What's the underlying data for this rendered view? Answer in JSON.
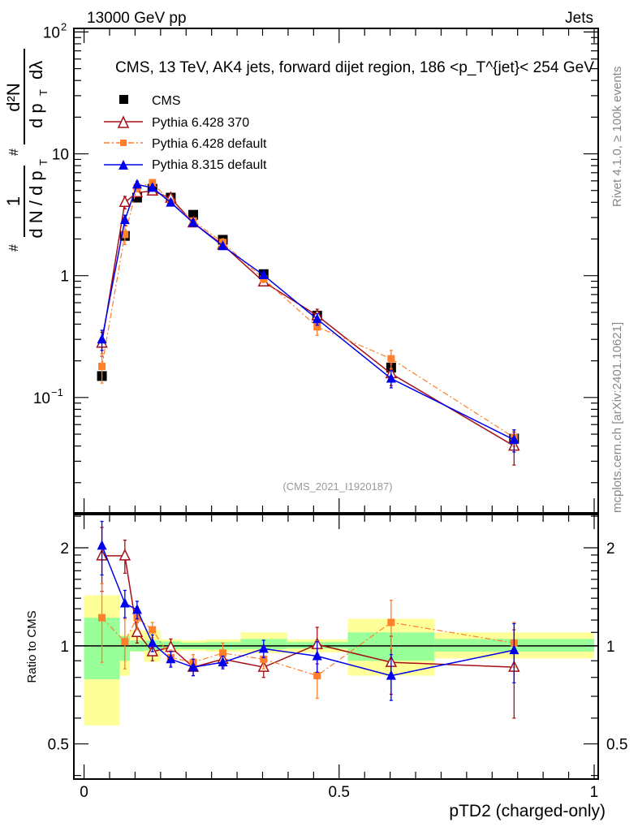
{
  "header": {
    "left": "13000 GeV pp",
    "right": "Jets"
  },
  "side_labels": {
    "rivet": "Rivet 4.1.0, ≥ 100k events",
    "mcplots": "mcplots.cern.ch [arXiv:2401.10621]"
  },
  "colors": {
    "cms": "#000000",
    "p6_370": "#a50f15",
    "p6_default": "#ff7f2a",
    "p8_default": "#0000ee",
    "band_yellow": "#ffff99",
    "band_green": "#99ff99"
  },
  "chart_data": [
    {
      "type": "line",
      "panel": "main",
      "title": "CMS, 13 TeV, AK4 jets, forward dijet region, 186 <p_T^{jet}< 254 GeV",
      "title_parts": {
        "pre": "CMS, 13 TeV, AK4 jets, forward dijet region, 186 <p",
        "sup": "{jet}",
        "sub": "T",
        "post": "}< 254 GeV"
      },
      "ylabel_parts": {
        "num1": "1",
        "den1": "d N / d p",
        "num2": "d²N",
        "den2": "d p",
        "sub": "T",
        "den2b": "dλ",
        "hash": "#"
      },
      "yscale": "log",
      "ylim": [
        0.0113,
        107
      ],
      "xlim": [
        -0.02,
        1.008
      ],
      "yticks": [
        {
          "v": 0.1,
          "label": "10",
          "exp": "−1"
        },
        {
          "v": 1,
          "label": "1",
          "exp": ""
        },
        {
          "v": 10,
          "label": "10",
          "exp": ""
        },
        {
          "v": 100,
          "label": "10",
          "exp": "2"
        }
      ],
      "watermark": "(CMS_2021_I1920187)",
      "legend_position": "top-left",
      "x": [
        0.035,
        0.08,
        0.104,
        0.134,
        0.17,
        0.214,
        0.272,
        0.352,
        0.457,
        0.602,
        0.843
      ],
      "series": [
        {
          "name": "CMS",
          "key": "cms",
          "marker": "square",
          "values": [
            0.15,
            2.12,
            4.37,
            5.17,
            4.37,
            3.16,
            1.97,
            1.03,
            0.47,
            0.176,
            0.046
          ]
        },
        {
          "name": "Pythia 6.428 370",
          "key": "p6_370",
          "marker": "open-triangle",
          "values": [
            0.28,
            4.0,
            4.8,
            4.96,
            4.33,
            2.72,
            1.79,
            0.89,
            0.47,
            0.157,
            0.04
          ]
        },
        {
          "name": "Pythia 6.428 default",
          "key": "p6_default",
          "marker": "small-square",
          "values": [
            0.18,
            2.18,
            5.3,
            5.8,
            4.0,
            2.81,
            1.87,
            0.94,
            0.38,
            0.208,
            0.047
          ]
        },
        {
          "name": "Pythia 8.315 default",
          "key": "p8_default",
          "marker": "triangle",
          "values": [
            0.3,
            2.86,
            5.6,
            5.27,
            3.98,
            2.72,
            1.75,
            1.01,
            0.44,
            0.143,
            0.045
          ]
        }
      ]
    },
    {
      "type": "line",
      "panel": "ratio",
      "ylabel": "Ratio to CMS",
      "xlabel": "pTD2 (charged-only)",
      "yscale": "log",
      "ylim": [
        0.39,
        2.53
      ],
      "xlim": [
        -0.02,
        1.008
      ],
      "yticks": [
        {
          "v": 0.5,
          "label": "0.5"
        },
        {
          "v": 1,
          "label": "1"
        },
        {
          "v": 2,
          "label": "2"
        }
      ],
      "xticks": [
        {
          "v": 0,
          "label": "0"
        },
        {
          "v": 0.5,
          "label": "0.5"
        },
        {
          "v": 1,
          "label": "1"
        }
      ],
      "bin_edges": [
        0,
        0.07,
        0.09,
        0.118,
        0.15,
        0.19,
        0.238,
        0.307,
        0.398,
        0.517,
        0.687,
        1.0
      ],
      "band_outer": [
        [
          0.57,
          1.43
        ],
        [
          0.81,
          1.08
        ],
        [
          0.96,
          1.117
        ],
        [
          0.893,
          1.117
        ],
        [
          0.962,
          1.047
        ],
        [
          0.966,
          1.039
        ],
        [
          0.959,
          1.047
        ],
        [
          0.95,
          1.1
        ],
        [
          0.955,
          1.047
        ],
        [
          0.81,
          1.21
        ],
        [
          0.915,
          1.1
        ]
      ],
      "band_inner": [
        [
          0.79,
          1.22
        ],
        [
          0.9,
          1.07
        ],
        [
          0.962,
          1.039
        ],
        [
          0.968,
          1.039
        ],
        [
          0.977,
          1.031
        ],
        [
          0.977,
          1.023
        ],
        [
          0.973,
          1.027
        ],
        [
          0.977,
          1.05
        ],
        [
          0.981,
          1.027
        ],
        [
          0.9,
          1.1
        ],
        [
          0.96,
          1.05
        ]
      ],
      "x": [
        0.035,
        0.08,
        0.104,
        0.134,
        0.17,
        0.214,
        0.272,
        0.352,
        0.457,
        0.602,
        0.843
      ],
      "series": [
        {
          "name": "Pythia 6.428 370",
          "key": "p6_370",
          "marker": "open-triangle",
          "values": [
            1.89,
            1.89,
            1.1,
            0.96,
            0.99,
            0.86,
            0.91,
            0.86,
            1.01,
            0.89,
            0.86
          ],
          "errors": [
            0.42,
            0.22,
            0.08,
            0.06,
            0.06,
            0.05,
            0.05,
            0.06,
            0.13,
            0.18,
            0.26
          ]
        },
        {
          "name": "Pythia 6.428 default",
          "key": "p6_default",
          "marker": "small-square",
          "values": [
            1.22,
            1.03,
            1.22,
            1.12,
            0.92,
            0.89,
            0.95,
            0.91,
            0.81,
            1.18,
            1.02
          ],
          "errors": [
            0.33,
            0.18,
            0.1,
            0.06,
            0.05,
            0.05,
            0.07,
            0.06,
            0.12,
            0.2,
            0.16
          ]
        },
        {
          "name": "Pythia 8.315 default",
          "key": "p8_default",
          "marker": "triangle",
          "values": [
            2.03,
            1.35,
            1.29,
            1.02,
            0.91,
            0.86,
            0.89,
            0.98,
            0.93,
            0.81,
            0.97
          ],
          "errors": [
            0.38,
            0.13,
            0.08,
            0.06,
            0.05,
            0.05,
            0.04,
            0.06,
            0.1,
            0.13,
            0.2
          ]
        }
      ]
    }
  ]
}
